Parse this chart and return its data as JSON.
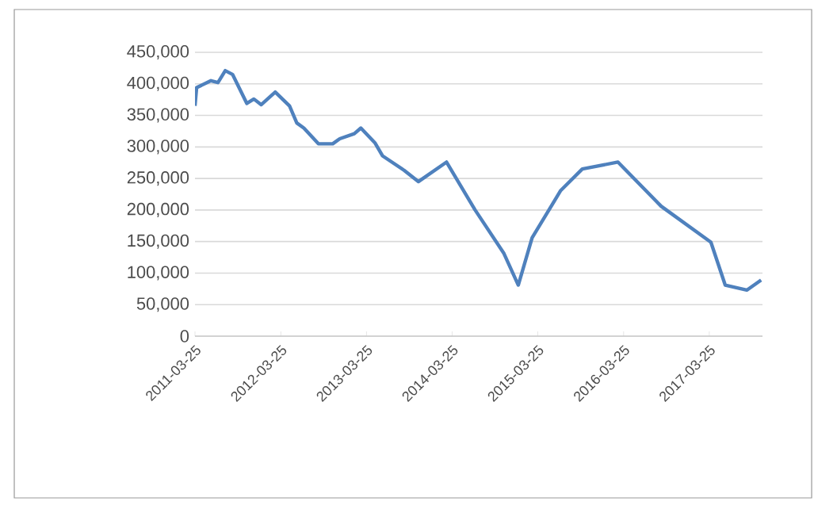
{
  "chart_data": {
    "type": "line",
    "x": [
      "2011-03-25",
      "2011-04",
      "2011-06",
      "2011-07",
      "2011-08",
      "2011-09",
      "2011-11",
      "2011-12",
      "2012-01",
      "2012-03",
      "2012-05",
      "2012-06",
      "2012-07",
      "2012-09",
      "2012-11",
      "2012-12",
      "2013-02",
      "2013-03",
      "2013-05",
      "2013-06",
      "2013-09",
      "2013-11",
      "2014-03",
      "2014-07",
      "2014-11",
      "2015-01",
      "2015-03",
      "2015-07",
      "2015-10",
      "2016-03",
      "2016-09",
      "2017-04",
      "2017-06",
      "2017-09",
      "2017-11"
    ],
    "series": [
      {
        "color": "#4f81bd",
        "values": [
          365000,
          394000,
          405000,
          402000,
          421000,
          415000,
          369000,
          376000,
          367000,
          387000,
          365000,
          338000,
          330000,
          305000,
          305000,
          313000,
          321000,
          330000,
          306000,
          286000,
          263000,
          245000,
          276000,
          200000,
          131000,
          81000,
          156000,
          231000,
          265000,
          276000,
          206000,
          149000,
          81000,
          73000,
          89000
        ]
      }
    ],
    "xlim": [
      "2011-03-25",
      "2017-11-07"
    ],
    "xticks": [
      "2011-03-25",
      "2012-03-25",
      "2013-03-25",
      "2014-03-25",
      "2015-03-25",
      "2016-03-25",
      "2017-03-25"
    ],
    "ylim": [
      0,
      450000
    ],
    "yticks": [
      0,
      {
        "value": 50000,
        "label": "50,000"
      },
      {
        "value": 100000,
        "label": "100,000"
      },
      {
        "value": 150000,
        "label": "150,000"
      },
      {
        "value": 200000,
        "label": "200,000"
      },
      {
        "value": 250000,
        "label": "250,000"
      },
      {
        "value": 300000,
        "label": "300,000"
      },
      {
        "value": 350000,
        "label": "350,000"
      },
      {
        "value": 400000,
        "label": "400,000"
      },
      {
        "value": 450000,
        "label": "450,000"
      }
    ],
    "grid": "y",
    "marker": "none",
    "line_style": "solid"
  }
}
